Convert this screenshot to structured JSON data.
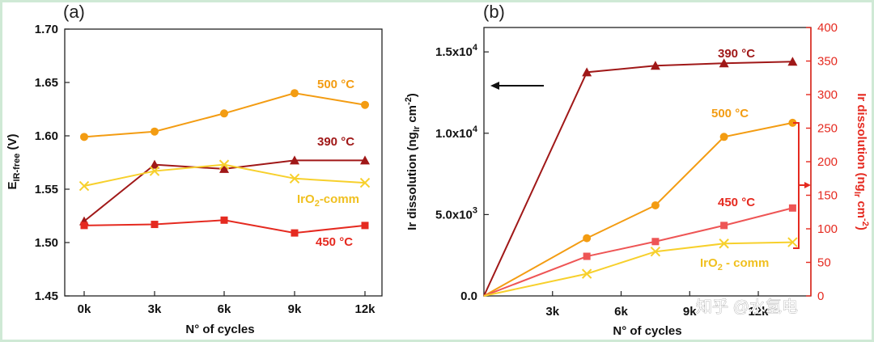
{
  "watermark": "知乎 @水氢电",
  "chart_data": [
    {
      "panel": "(a)",
      "type": "line",
      "title": "(a)",
      "xlabel": "N° of cycles",
      "ylabel_main": "E",
      "ylabel_sub": "IR-free",
      "ylabel_unit": " (V)",
      "categories": [
        "0k",
        "3k",
        "6k",
        "9k",
        "12k"
      ],
      "ylim": [
        1.45,
        1.7
      ],
      "yticks": [
        "1.45",
        "1.50",
        "1.55",
        "1.60",
        "1.65",
        "1.70"
      ],
      "series": [
        {
          "name": "500 °C",
          "color": "#f39c12",
          "marker": "circle",
          "values": [
            1.599,
            1.604,
            1.621,
            1.64,
            1.629
          ]
        },
        {
          "name": "390 °C",
          "color": "#a01818",
          "marker": "triangle",
          "values": [
            1.52,
            1.573,
            1.569,
            1.577,
            1.577
          ]
        },
        {
          "name": "IrO2-comm",
          "color": "#f7d02c",
          "marker": "x",
          "values": [
            1.553,
            1.567,
            1.573,
            1.56,
            1.556
          ]
        },
        {
          "name": "450 °C",
          "color": "#e52a20",
          "marker": "square",
          "values": [
            1.516,
            1.517,
            1.521,
            1.509,
            1.516
          ]
        }
      ],
      "labels": {
        "s500": "500 °C",
        "s390": "390 °C",
        "iro2_main": "IrO",
        "iro2_sub": "2",
        "iro2_rest": "-comm",
        "s450": "450 °C"
      }
    },
    {
      "panel": "(b)",
      "type": "line",
      "title": "(b)",
      "xlabel": "N° of cycles",
      "x": [
        0,
        4.5,
        7.5,
        10.5,
        13.5
      ],
      "xlim": [
        0,
        14.3
      ],
      "xticks": [
        {
          "v": 3,
          "label": "3k"
        },
        {
          "v": 6,
          "label": "6k"
        },
        {
          "v": 9,
          "label": "9k"
        },
        {
          "v": 12,
          "label": "12k"
        }
      ],
      "ylim_left": [
        0,
        16500
      ],
      "yticks_left": [
        {
          "v": 0,
          "m": "0.0",
          "e": ""
        },
        {
          "v": 5000,
          "m": "5.0x10",
          "e": "3"
        },
        {
          "v": 10000,
          "m": "1.0x10",
          "e": "4"
        },
        {
          "v": 15000,
          "m": "1.5x10",
          "e": "4"
        }
      ],
      "ylabel_left_a": "Ir dissolution (ng",
      "ylabel_left_sub": "Ir",
      "ylabel_left_b": " cm",
      "ylabel_left_sup": "-2",
      "ylabel_left_c": ")",
      "ylim_right": [
        0,
        400
      ],
      "yticks_right": [
        "0",
        "50",
        "100",
        "150",
        "200",
        "250",
        "300",
        "350",
        "400"
      ],
      "right_axis_color": "#e52a20",
      "ylabel_right_a": "Ir dissolution (ng",
      "ylabel_right_sub": "Ir",
      "ylabel_right_b": " cm",
      "ylabel_right_sup": "-2",
      "ylabel_right_c": ")",
      "series": [
        {
          "name": "390 °C",
          "axis": "left",
          "color": "#a01818",
          "marker": "triangle",
          "values": [
            0,
            13750,
            14150,
            14300,
            14400
          ]
        },
        {
          "name": "500 °C",
          "axis": "right",
          "color": "#f39c12",
          "marker": "circle",
          "values": [
            0,
            86,
            135,
            237,
            258
          ]
        },
        {
          "name": "450 °C",
          "axis": "right",
          "color": "#ee5555",
          "marker": "square",
          "values": [
            0,
            59,
            81,
            105,
            131
          ]
        },
        {
          "name": "IrO2 - comm",
          "axis": "right",
          "color": "#f7d02c",
          "marker": "x",
          "values": [
            0,
            33,
            66,
            78,
            80
          ]
        }
      ],
      "labels": {
        "s390": "390 °C",
        "s500": "500 °C",
        "s450": "450 °C",
        "iro2_main": "IrO",
        "iro2_sub": "2",
        "iro2_rest": " - comm"
      }
    }
  ]
}
